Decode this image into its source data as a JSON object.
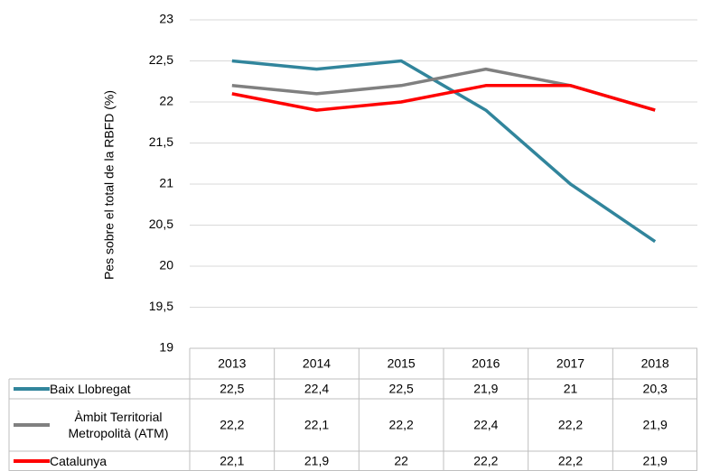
{
  "chart_data": {
    "type": "line",
    "ylabel": "Pes sobre el total de la RBFD (%)",
    "categories": [
      "2013",
      "2014",
      "2015",
      "2016",
      "2017",
      "2018"
    ],
    "series": [
      {
        "name": "Baix Llobregat",
        "color": "#31859c",
        "values": [
          22.5,
          22.4,
          22.5,
          21.9,
          21,
          20.3
        ],
        "value_labels": [
          "22,5",
          "22,4",
          "22,5",
          "21,9",
          "21",
          "20,3"
        ]
      },
      {
        "name": "Àmbit Territorial Metropolità (ATM)",
        "color": "#808080",
        "values": [
          22.2,
          22.1,
          22.2,
          22.4,
          22.2,
          21.9
        ],
        "value_labels": [
          "22,2",
          "22,1",
          "22,2",
          "22,4",
          "22,2",
          "21,9"
        ]
      },
      {
        "name": "Catalunya",
        "color": "#ff0000",
        "values": [
          22.1,
          21.9,
          22,
          22.2,
          22.2,
          21.9
        ],
        "value_labels": [
          "22,1",
          "21,9",
          "22",
          "22,2",
          "22,2",
          "21,9"
        ]
      }
    ],
    "ylim": [
      19,
      23
    ],
    "yticks": [
      19,
      {
        "value": 19.5,
        "label": "19,5"
      },
      20,
      {
        "value": 20.5,
        "label": "20,5"
      },
      21,
      {
        "value": 21.5,
        "label": "21,5"
      },
      22,
      {
        "value": 22.5,
        "label": "22,5"
      },
      23
    ],
    "grid": true,
    "data_table": true
  }
}
